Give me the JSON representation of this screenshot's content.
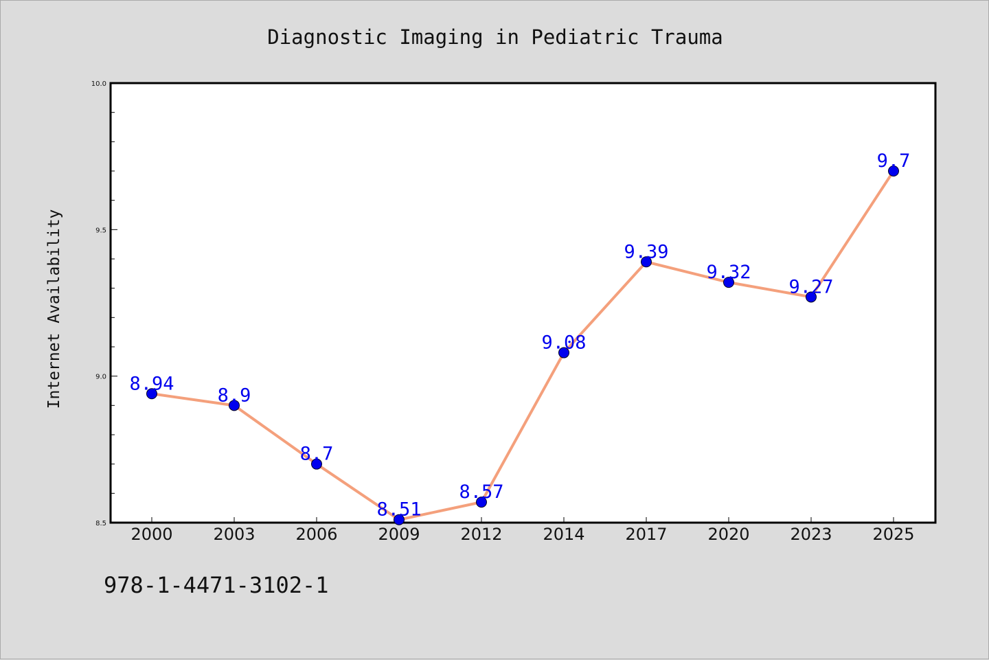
{
  "chart_data": {
    "type": "line",
    "title": "Diagnostic Imaging in Pediatric Trauma",
    "xlabel": "",
    "ylabel": "Internet Availability",
    "categories": [
      "2000",
      "2003",
      "2006",
      "2009",
      "2012",
      "2014",
      "2017",
      "2020",
      "2023",
      "2025"
    ],
    "series": [
      {
        "values": [
          8.94,
          8.9,
          8.7,
          8.51,
          8.57,
          9.08,
          9.39,
          9.32,
          9.27,
          9.7
        ],
        "data_labels": [
          "8.94",
          "8.9",
          "8.7",
          "8.51",
          "8.57",
          "9.08",
          "9.39",
          "9.32",
          "9.27",
          "9.7"
        ]
      }
    ],
    "ylim": [
      8.5,
      10.0
    ],
    "y_ticks": [
      "8.5",
      "9.0",
      "9.5",
      "10.0"
    ],
    "grid": false,
    "colors": {
      "line": "#f4a07c",
      "marker": "#0000ee",
      "label": "#0000ee"
    }
  },
  "footer": {
    "text": "978-1-4471-3102-1"
  }
}
